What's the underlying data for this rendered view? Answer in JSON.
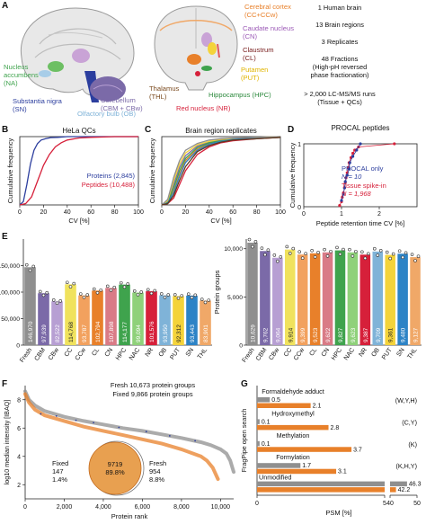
{
  "colors": {
    "blue": "#2c3e9e",
    "red": "#d6203a",
    "gray": "#8f8f8f",
    "orange": "#e8802a",
    "bars": [
      "#8f8f8f",
      "#7b6aa8",
      "#b79fd3",
      "#f0e25d",
      "#f2a15e",
      "#e8802a",
      "#d97b86",
      "#3fa34d",
      "#8fd17a",
      "#d6203a",
      "#7fb3d8",
      "#f4d33a",
      "#2c83c6",
      "#f0a868"
    ]
  },
  "panel_letters": {
    "a": "A",
    "b": "B",
    "c": "C",
    "d": "D",
    "e": "E",
    "f": "F",
    "g": "G"
  },
  "panel_a": {
    "brain_labels_left": {
      "na": "Nucleus\naccumbens\n(NA)",
      "sn": "Substantia nigra\n(SN)",
      "ob": "Olfactory bulb (OB)",
      "cb": "Cerebellum\n(CBM + CBw)"
    },
    "brain_labels_right": {
      "cortex": "Cerebral cortex\n(CC+CCw)",
      "cn": "Caudate nucleus\n(CN)",
      "cl": "Claustrum\n(CL)",
      "put": "Putamen\n(PUT)",
      "thl": "Thalamus\n(THL)",
      "hpc": "Hippocampus (HPC)",
      "nr": "Red nucleus (NR)"
    },
    "stats": [
      "1 Human brain",
      "13 Brain regions",
      "3 Replicates",
      "48 Fractions\n(High-pH reversed\nphase fractionation)",
      "> 2,000 LC-MS/MS runs\n(Tissue + QCs)"
    ]
  },
  "chart_data": [
    {
      "panel": "B",
      "type": "line",
      "title": "HeLa QCs",
      "xlabel": "CV [%]",
      "ylabel": "Cumulative frequency",
      "xlim": [
        0,
        100
      ],
      "ylim": [
        0,
        1
      ],
      "x_ticks": [
        "0",
        "20",
        "40",
        "60",
        "80",
        "100"
      ],
      "series": [
        {
          "name": "Proteins (2,845)",
          "color": "#2c3e9e",
          "x": [
            0,
            3,
            6,
            9,
            12,
            15,
            18,
            22,
            26,
            32,
            40,
            60,
            100
          ],
          "y": [
            0,
            0.05,
            0.3,
            0.6,
            0.8,
            0.9,
            0.95,
            0.97,
            0.985,
            0.99,
            1,
            1,
            1
          ]
        },
        {
          "name": "Peptides (10,488)",
          "color": "#d6203a",
          "x": [
            0,
            5,
            10,
            15,
            20,
            25,
            30,
            35,
            40,
            50,
            60,
            80,
            100
          ],
          "y": [
            0,
            0.02,
            0.12,
            0.35,
            0.58,
            0.74,
            0.85,
            0.91,
            0.95,
            0.98,
            0.99,
            1,
            1
          ]
        }
      ]
    },
    {
      "panel": "C",
      "type": "line",
      "title": "Brain region replicates",
      "xlabel": "CV [%]",
      "ylabel": "Cumulative frequency",
      "xlim": [
        0,
        100
      ],
      "ylim": [
        0,
        1
      ],
      "x_ticks": [
        "0",
        "20",
        "40",
        "60",
        "80",
        "100"
      ],
      "series": [
        {
          "color": "#7b6aa8",
          "x": [
            0,
            5,
            10,
            15,
            20,
            30,
            40,
            50,
            60,
            80,
            100
          ],
          "y": [
            0,
            0.05,
            0.3,
            0.55,
            0.72,
            0.86,
            0.92,
            0.95,
            0.97,
            0.99,
            1
          ]
        },
        {
          "color": "#e8802a",
          "x": [
            0,
            5,
            10,
            15,
            20,
            30,
            40,
            50,
            60,
            80,
            100
          ],
          "y": [
            0,
            0.03,
            0.2,
            0.45,
            0.65,
            0.82,
            0.9,
            0.94,
            0.96,
            0.98,
            0.99
          ]
        },
        {
          "color": "#3fa34d",
          "x": [
            0,
            5,
            10,
            15,
            20,
            30,
            40,
            50,
            60,
            80,
            100
          ],
          "y": [
            0,
            0.04,
            0.25,
            0.5,
            0.68,
            0.84,
            0.91,
            0.94,
            0.96,
            0.98,
            0.99
          ]
        },
        {
          "color": "#d6203a",
          "x": [
            0,
            5,
            10,
            15,
            20,
            30,
            40,
            50,
            60,
            80,
            100
          ],
          "y": [
            0,
            0.02,
            0.1,
            0.3,
            0.5,
            0.74,
            0.85,
            0.91,
            0.94,
            0.97,
            0.99
          ]
        },
        {
          "color": "#f4d33a",
          "x": [
            0,
            5,
            10,
            15,
            20,
            30,
            40,
            50,
            60,
            80,
            100
          ],
          "y": [
            0,
            0.06,
            0.35,
            0.6,
            0.76,
            0.88,
            0.93,
            0.96,
            0.97,
            0.99,
            1
          ]
        },
        {
          "color": "#2c83c6",
          "x": [
            0,
            5,
            10,
            15,
            20,
            30,
            40,
            50,
            60,
            80,
            100
          ],
          "y": [
            0,
            0.03,
            0.18,
            0.42,
            0.62,
            0.8,
            0.89,
            0.93,
            0.96,
            0.98,
            0.99
          ]
        },
        {
          "color": "#8f8f8f",
          "x": [
            0,
            5,
            10,
            15,
            20,
            30,
            40,
            50,
            60,
            80,
            100
          ],
          "y": [
            0,
            0.08,
            0.4,
            0.65,
            0.8,
            0.9,
            0.95,
            0.97,
            0.98,
            0.99,
            1
          ]
        },
        {
          "color": "#5c3a1e",
          "x": [
            0,
            5,
            10,
            15,
            20,
            30,
            40,
            50,
            60,
            80,
            100
          ],
          "y": [
            0,
            0.02,
            0.14,
            0.36,
            0.56,
            0.78,
            0.87,
            0.92,
            0.95,
            0.97,
            0.99
          ]
        }
      ]
    },
    {
      "panel": "D",
      "type": "scatter",
      "title": "PROCAL peptides",
      "xlabel": "Peptide retention time CV [%]",
      "ylabel": "Cumulative frequency",
      "xlim": [
        0,
        3
      ],
      "ylim": [
        0,
        1
      ],
      "x_ticks": [
        "0",
        "1",
        "2"
      ],
      "y_ticks": [
        "0",
        "1"
      ],
      "series": [
        {
          "name": "PROCAL only",
          "n_text": "N = 10",
          "color": "#2c3e9e",
          "x": [
            1.0,
            1.05,
            1.08,
            1.1,
            1.15,
            1.2,
            1.22,
            1.3,
            1.4,
            1.5
          ],
          "y": [
            0.1,
            0.2,
            0.3,
            0.4,
            0.5,
            0.6,
            0.7,
            0.8,
            0.9,
            1.0
          ]
        },
        {
          "name": "Tissue spike-in",
          "n_text": "N = 1,968",
          "color": "#d6203a",
          "x": [
            0.95,
            1.0,
            1.02,
            1.05,
            1.08,
            1.1,
            1.12,
            1.15,
            1.18,
            1.2,
            1.25,
            1.3,
            1.35,
            1.45,
            2.4
          ],
          "y": [
            0.02,
            0.08,
            0.15,
            0.22,
            0.3,
            0.38,
            0.46,
            0.54,
            0.62,
            0.7,
            0.78,
            0.85,
            0.9,
            0.95,
            1.0
          ]
        }
      ]
    },
    {
      "panel": "E-left",
      "type": "bar",
      "ylabel": "Unique peptides",
      "ylim": [
        0,
        200000
      ],
      "y_ticks": [
        "0",
        "50,000",
        "100,000",
        "150,000"
      ],
      "categories": [
        "Fresh",
        "CBM",
        "CBw",
        "CC",
        "CCw",
        "CL",
        "CN",
        "HPC",
        "NAC",
        "NR",
        "OB",
        "PUT",
        "SN",
        "THL"
      ],
      "values": [
        146970,
        97939,
        82522,
        114768,
        93787,
        102794,
        107898,
        114177,
        99094,
        101576,
        93950,
        92312,
        93443,
        83901
      ],
      "value_labels": [
        "146,970",
        "97,939",
        "82,522",
        "114,768",
        "93,787",
        "102,794",
        "107,898",
        "114,177",
        "99,094",
        "101,576",
        "93,950",
        "92,312",
        "93,443",
        "83,901"
      ]
    },
    {
      "panel": "E-right",
      "type": "bar",
      "ylabel": "Protein groups",
      "ylim": [
        0,
        11000
      ],
      "y_ticks": [
        "0",
        "5,000",
        "10,000"
      ],
      "categories": [
        "Fresh",
        "CBM",
        "CBw",
        "CC",
        "CCw",
        "CL",
        "CN",
        "HPC",
        "NAC",
        "NR",
        "OB",
        "PUT",
        "SN",
        "THL"
      ],
      "values": [
        10629,
        9762,
        9064,
        9914,
        9399,
        9523,
        9622,
        9827,
        9623,
        9387,
        9709,
        9361,
        9480,
        9127
      ],
      "value_labels": [
        "10,629",
        "9,762",
        "9,064",
        "9,914",
        "9,399",
        "9,523",
        "9,622",
        "9,827",
        "9,623",
        "9,387",
        "9,709",
        "9,361",
        "9,480",
        "9,127"
      ]
    },
    {
      "panel": "F",
      "type": "scatter",
      "xlabel": "Protein rank",
      "ylabel": "log10 median intensity [IBAQ]",
      "xlim": [
        0,
        10673
      ],
      "ylim": [
        1,
        9
      ],
      "x_ticks": [
        "0",
        "2,000",
        "4,000",
        "6,000",
        "8,000",
        "10,000"
      ],
      "y_ticks": [
        "2",
        "4",
        "6",
        "8"
      ],
      "annotations": [
        "Fresh 10,673 protein groups",
        "Fixed 9,866 protein groups"
      ],
      "series": [
        {
          "name": "Fresh",
          "color": "#8f8f8f",
          "x": [
            0,
            200,
            500,
            1000,
            2000,
            3000,
            4000,
            5000,
            6000,
            7000,
            8000,
            9000,
            9500,
            10000,
            10300,
            10500,
            10673
          ],
          "y": [
            8.6,
            8.0,
            7.6,
            7.2,
            6.8,
            6.5,
            6.25,
            6.0,
            5.8,
            5.55,
            5.3,
            5.0,
            4.8,
            4.5,
            4.2,
            3.7,
            2.9
          ]
        },
        {
          "name": "Fixed",
          "color": "#e8802a",
          "x": [
            0,
            200,
            500,
            1000,
            2000,
            3000,
            4000,
            5000,
            6000,
            7000,
            8000,
            9000,
            9300,
            9600,
            9866
          ],
          "y": [
            8.4,
            7.8,
            7.3,
            6.9,
            6.5,
            6.1,
            5.8,
            5.5,
            5.2,
            4.9,
            4.5,
            4.0,
            3.7,
            3.2,
            2.4
          ]
        }
      ],
      "venn": {
        "fixed_label": "Fixed",
        "fixed_count": "147",
        "fixed_pct": "1.4%",
        "overlap_count": "9719",
        "overlap_pct": "89.8%",
        "fresh_label": "Fresh",
        "fresh_count": "954",
        "fresh_pct": "8.8%"
      }
    },
    {
      "panel": "G",
      "type": "bar",
      "orientation": "horizontal",
      "xlabel": "PSM [%]",
      "ylabel": "FragPipe open search",
      "categories": [
        "Formaldehyde adduct",
        "Hydroxymethyl",
        "Methylation",
        "Formylation",
        "Unmodified"
      ],
      "residues": [
        "(W,Y,H)",
        "(C,Y)",
        "(K)",
        "(K,H,Y)",
        ""
      ],
      "series": [
        {
          "name": "Fresh",
          "color": "#8f8f8f",
          "values": [
            0.5,
            0.1,
            0.1,
            1.7,
            46.3
          ],
          "value_labels": [
            "0.5",
            "0.1",
            "0.1",
            "1.7",
            "46.3"
          ]
        },
        {
          "name": "Fixed",
          "color": "#e8802a",
          "values": [
            2.1,
            2.8,
            3.7,
            3.1,
            42.2
          ],
          "value_labels": [
            "2.1",
            "2.8",
            "3.7",
            "3.1",
            "42.2"
          ]
        }
      ],
      "x_ticks": [
        "0",
        "5",
        "40",
        "50"
      ],
      "axis_break": [
        5,
        40
      ]
    }
  ]
}
